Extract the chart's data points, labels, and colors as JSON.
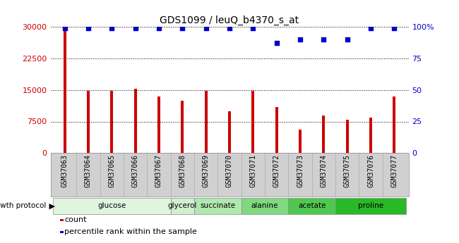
{
  "title": "GDS1099 / leuQ_b4370_s_at",
  "samples": [
    "GSM37063",
    "GSM37064",
    "GSM37065",
    "GSM37066",
    "GSM37067",
    "GSM37068",
    "GSM37069",
    "GSM37070",
    "GSM37071",
    "GSM37072",
    "GSM37073",
    "GSM37074",
    "GSM37075",
    "GSM37076",
    "GSM37077"
  ],
  "counts": [
    29500,
    14800,
    14700,
    15200,
    13500,
    12500,
    14700,
    10000,
    14800,
    11000,
    5500,
    9000,
    8000,
    8500,
    13500
  ],
  "percentiles": [
    99,
    99,
    99,
    99,
    99,
    99,
    99,
    99,
    99,
    87,
    90,
    90,
    90,
    99,
    99
  ],
  "bar_color": "#cc0000",
  "dot_color": "#0000cc",
  "ylim_left": [
    0,
    30000
  ],
  "ylim_right": [
    0,
    100
  ],
  "yticks_left": [
    0,
    7500,
    15000,
    22500,
    30000
  ],
  "yticks_right": [
    0,
    25,
    50,
    75,
    100
  ],
  "yticklabels_left": [
    "0",
    "7500",
    "15000",
    "22500",
    "30000"
  ],
  "yticklabels_right": [
    "0",
    "25",
    "50",
    "75",
    "100%"
  ],
  "groups": [
    {
      "label": "glucose",
      "start": 0,
      "end": 5,
      "color": "#e0f5e0"
    },
    {
      "label": "glycerol",
      "start": 5,
      "end": 6,
      "color": "#d0f0d0"
    },
    {
      "label": "succinate",
      "start": 6,
      "end": 8,
      "color": "#b0e8b0"
    },
    {
      "label": "alanine",
      "start": 8,
      "end": 10,
      "color": "#80d880"
    },
    {
      "label": "acetate",
      "start": 10,
      "end": 12,
      "color": "#50c850"
    },
    {
      "label": "proline",
      "start": 12,
      "end": 15,
      "color": "#28b828"
    }
  ],
  "legend_count_color": "#cc0000",
  "legend_pct_color": "#0000cc",
  "growth_protocol_label": "growth protocol",
  "background_color": "#ffffff",
  "plot_bg_color": "#ffffff",
  "sample_row_color": "#d0d0d0",
  "grid_color": "#000000",
  "tick_label_color_left": "#cc0000",
  "tick_label_color_right": "#0000cc",
  "bar_width": 0.12
}
